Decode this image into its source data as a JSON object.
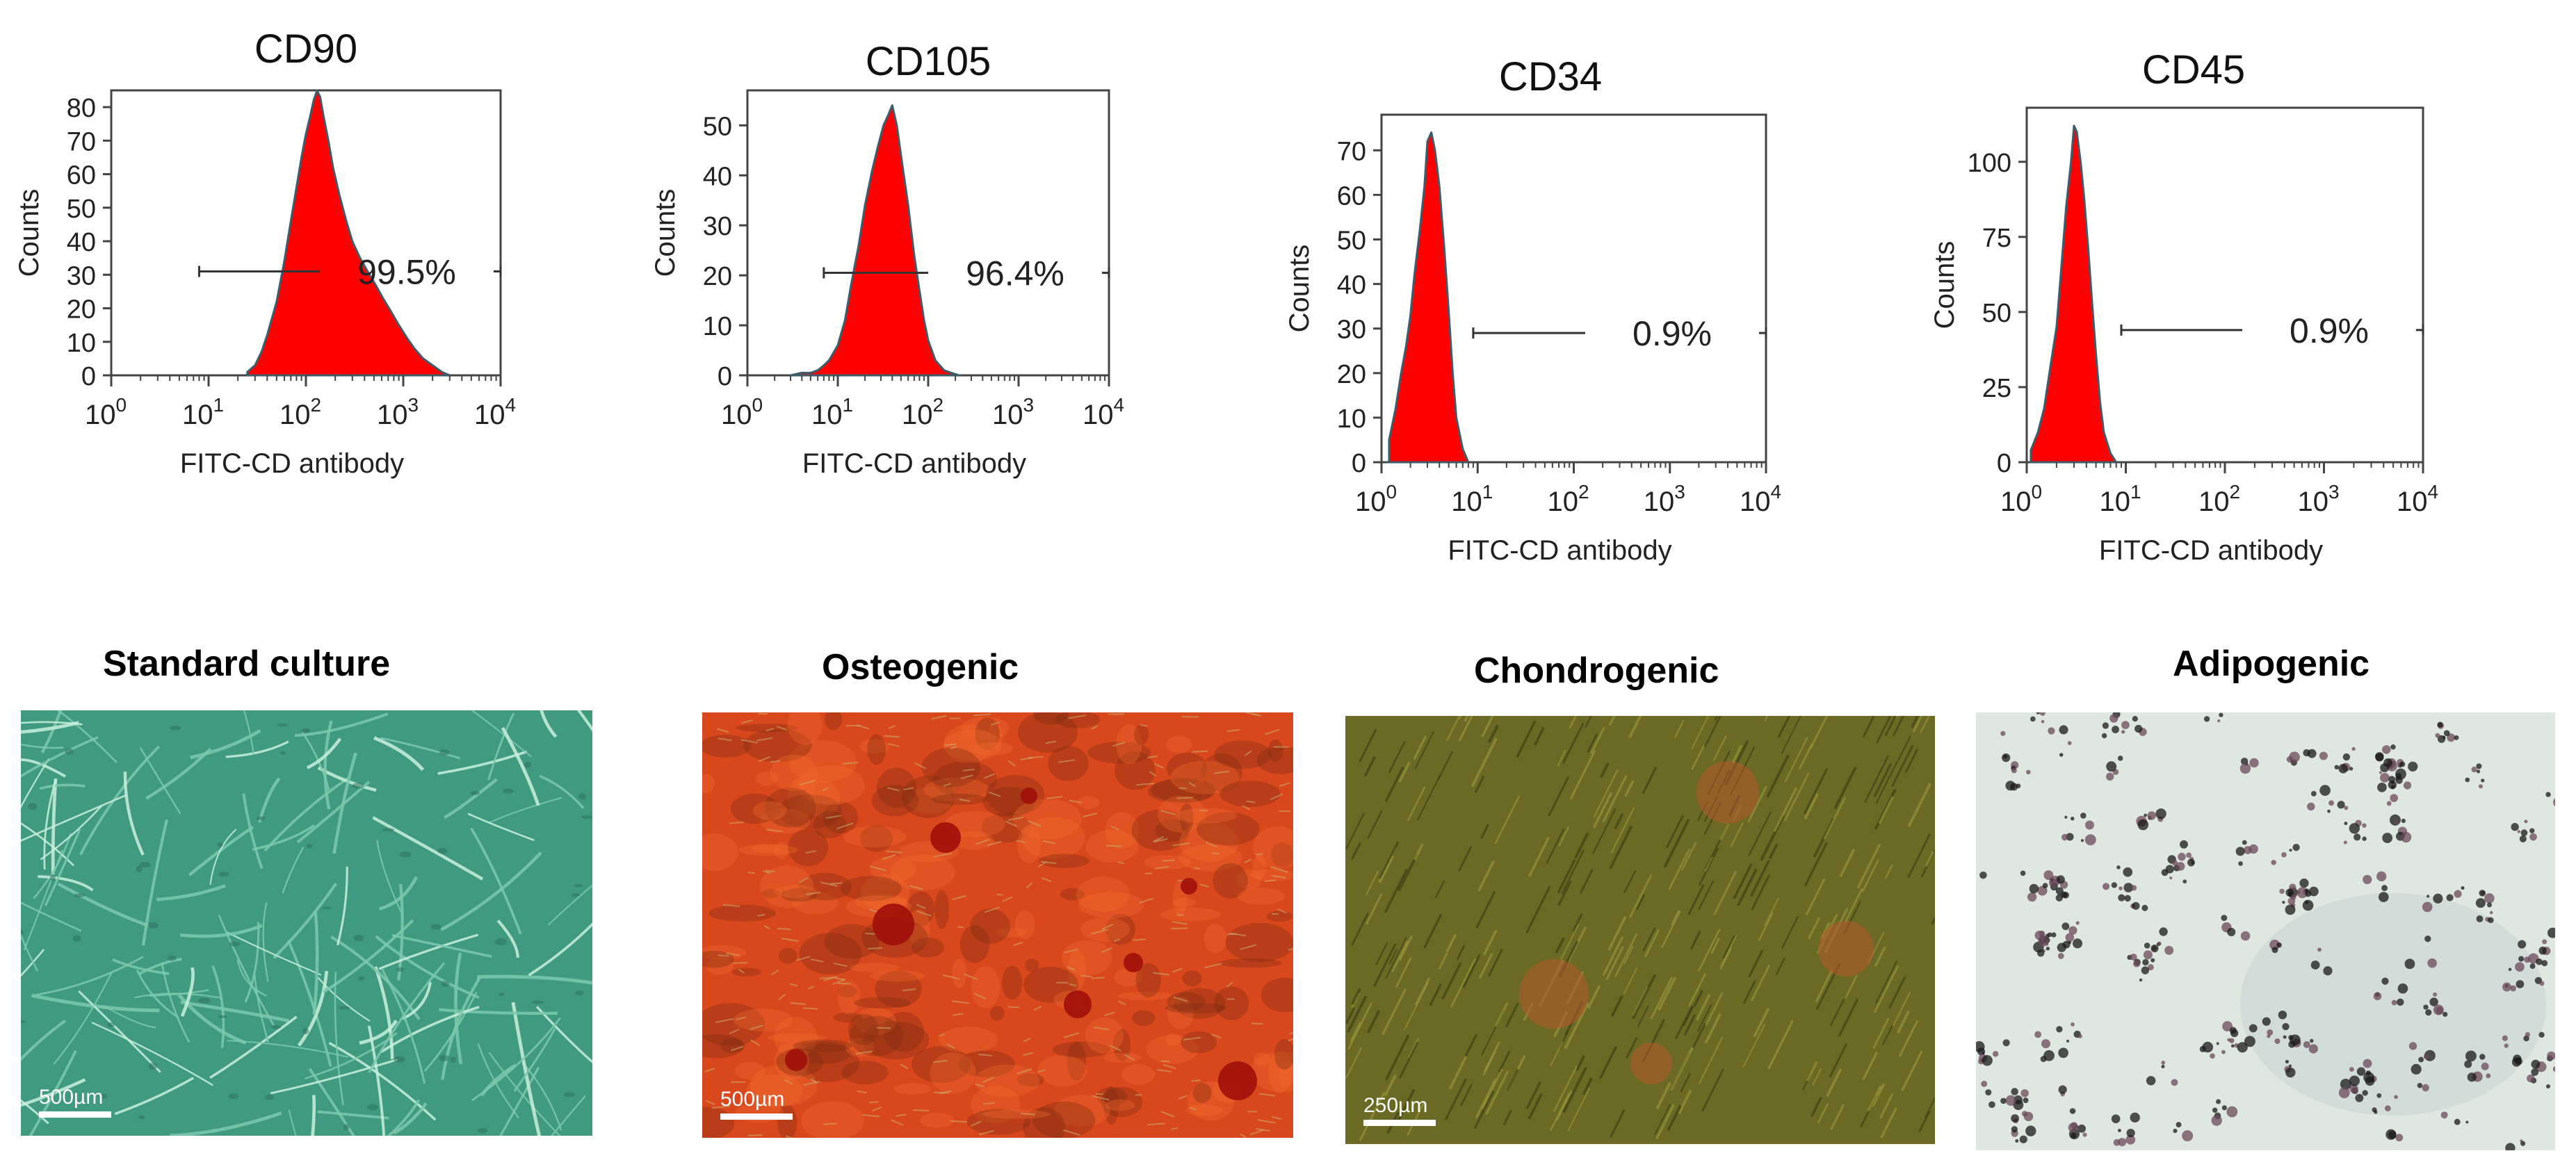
{
  "chart_data": [
    {
      "type": "area",
      "title": "CD90",
      "xlabel": "FITC-CD antibody",
      "ylabel": "Counts",
      "x_scale": "log",
      "xlim": [
        1,
        10000
      ],
      "ylim": [
        0,
        85
      ],
      "yticks": [
        0,
        10,
        20,
        30,
        40,
        50,
        60,
        70,
        80
      ],
      "xtick_labels": [
        {
          "base": "10",
          "exp": "0"
        },
        {
          "base": "10",
          "exp": "1"
        },
        {
          "base": "10",
          "exp": "2"
        },
        {
          "base": "10",
          "exp": "3"
        },
        {
          "base": "10",
          "exp": "4"
        }
      ],
      "gate": {
        "x_start": 8,
        "x_end": 10000,
        "y": 31,
        "label": "99.5%"
      },
      "x": [
        25,
        30,
        35,
        40,
        50,
        60,
        70,
        80,
        90,
        100,
        110,
        120,
        130,
        140,
        150,
        170,
        190,
        220,
        260,
        300,
        360,
        430,
        520,
        620,
        750,
        900,
        1100,
        1300,
        1600,
        2000,
        2500,
        3000
      ],
      "values": [
        1,
        3,
        7,
        12,
        22,
        34,
        46,
        56,
        65,
        72,
        77,
        82,
        85,
        83,
        78,
        70,
        62,
        54,
        46,
        40,
        35,
        31,
        27,
        23,
        19,
        15,
        11,
        8,
        5,
        3,
        1,
        0
      ]
    },
    {
      "type": "area",
      "title": "CD105",
      "xlabel": "FITC-CD antibody",
      "ylabel": "Counts",
      "x_scale": "log",
      "xlim": [
        1,
        10000
      ],
      "ylim": [
        0,
        57
      ],
      "yticks": [
        0,
        10,
        20,
        30,
        40,
        50
      ],
      "xtick_labels": [
        {
          "base": "10",
          "exp": "0"
        },
        {
          "base": "10",
          "exp": "1"
        },
        {
          "base": "10",
          "exp": "2"
        },
        {
          "base": "10",
          "exp": "3"
        },
        {
          "base": "10",
          "exp": "4"
        }
      ],
      "gate": {
        "x_start": 7,
        "x_end": 10000,
        "y": 20.5,
        "label": "96.4%"
      },
      "x": [
        3,
        4,
        5,
        6,
        7,
        8,
        10,
        12,
        14,
        17,
        20,
        24,
        28,
        32,
        36,
        40,
        45,
        50,
        60,
        70,
        80,
        90,
        100,
        120,
        150,
        180,
        220
      ],
      "values": [
        0,
        0.5,
        0.5,
        1,
        2,
        3,
        6,
        11,
        18,
        26,
        34,
        41,
        46,
        50,
        52,
        54,
        50,
        44,
        34,
        24,
        17,
        11,
        7,
        3,
        1,
        0.5,
        0
      ]
    },
    {
      "type": "area",
      "title": "CD34",
      "xlabel": "FITC-CD antibody",
      "ylabel": "Counts",
      "x_scale": "log",
      "xlim": [
        1,
        10000
      ],
      "ylim": [
        0,
        78
      ],
      "yticks": [
        0,
        10,
        20,
        30,
        40,
        50,
        60,
        70
      ],
      "xtick_labels": [
        {
          "base": "10",
          "exp": "0"
        },
        {
          "base": "10",
          "exp": "1"
        },
        {
          "base": "10",
          "exp": "2"
        },
        {
          "base": "10",
          "exp": "3"
        },
        {
          "base": "10",
          "exp": "4"
        }
      ],
      "gate": {
        "x_start": 9,
        "x_end": 10000,
        "y": 29,
        "label": "0.9%"
      },
      "x": [
        1.2,
        1.4,
        1.6,
        1.8,
        2,
        2.2,
        2.5,
        2.8,
        3,
        3.3,
        3.6,
        4,
        4.5,
        5,
        5.5,
        6,
        7,
        8
      ],
      "values": [
        5,
        12,
        20,
        26,
        33,
        42,
        52,
        62,
        72,
        74,
        70,
        62,
        48,
        34,
        20,
        10,
        3,
        0
      ]
    },
    {
      "type": "area",
      "title": "CD45",
      "xlabel": "FITC-CD antibody",
      "ylabel": "Counts",
      "x_scale": "log",
      "xlim": [
        1,
        10000
      ],
      "ylim": [
        0,
        118
      ],
      "yticks": [
        0,
        25,
        50,
        75,
        100
      ],
      "xtick_labels": [
        {
          "base": "10",
          "exp": "0"
        },
        {
          "base": "10",
          "exp": "1"
        },
        {
          "base": "10",
          "exp": "2"
        },
        {
          "base": "10",
          "exp": "3"
        },
        {
          "base": "10",
          "exp": "4"
        }
      ],
      "gate": {
        "x_start": 9,
        "x_end": 10000,
        "y": 44,
        "label": "0.9%"
      },
      "x": [
        1.1,
        1.3,
        1.5,
        1.7,
        2,
        2.2,
        2.5,
        2.8,
        3,
        3.2,
        3.5,
        3.8,
        4.2,
        4.6,
        5,
        5.5,
        6,
        7,
        8
      ],
      "values": [
        4,
        10,
        18,
        30,
        45,
        62,
        85,
        100,
        112,
        110,
        100,
        88,
        70,
        52,
        36,
        20,
        10,
        3,
        0
      ]
    }
  ],
  "micrographs": [
    {
      "title": "Standard culture",
      "scale": "500µm",
      "colors": {
        "base": "#3f9a80",
        "light": "#7cc8ad",
        "dark": "#2d6e5c",
        "cell": "#c9f0dd"
      }
    },
    {
      "title": "Osteogenic",
      "scale": "500µm",
      "colors": {
        "base": "#d9481c",
        "light": "#f06b2e",
        "dark": "#7a2a10",
        "nodule": "#a0100a"
      }
    },
    {
      "title": "Chondrogenic",
      "scale": "250µm",
      "colors": {
        "base": "#6b6a24",
        "light": "#9a9a3c",
        "dark": "#3a3a14",
        "stain": "#b5592b"
      }
    },
    {
      "title": "Adipogenic",
      "scale": "",
      "colors": {
        "base": "#dfe8e0",
        "light": "#eef3ee",
        "dark": "#1a1a1a",
        "drop": "#6b4a5a"
      }
    }
  ],
  "colors": {
    "fill": "#ff0000",
    "outline": "#3d5d6b",
    "axis": "#444444",
    "gate": "#333333"
  }
}
